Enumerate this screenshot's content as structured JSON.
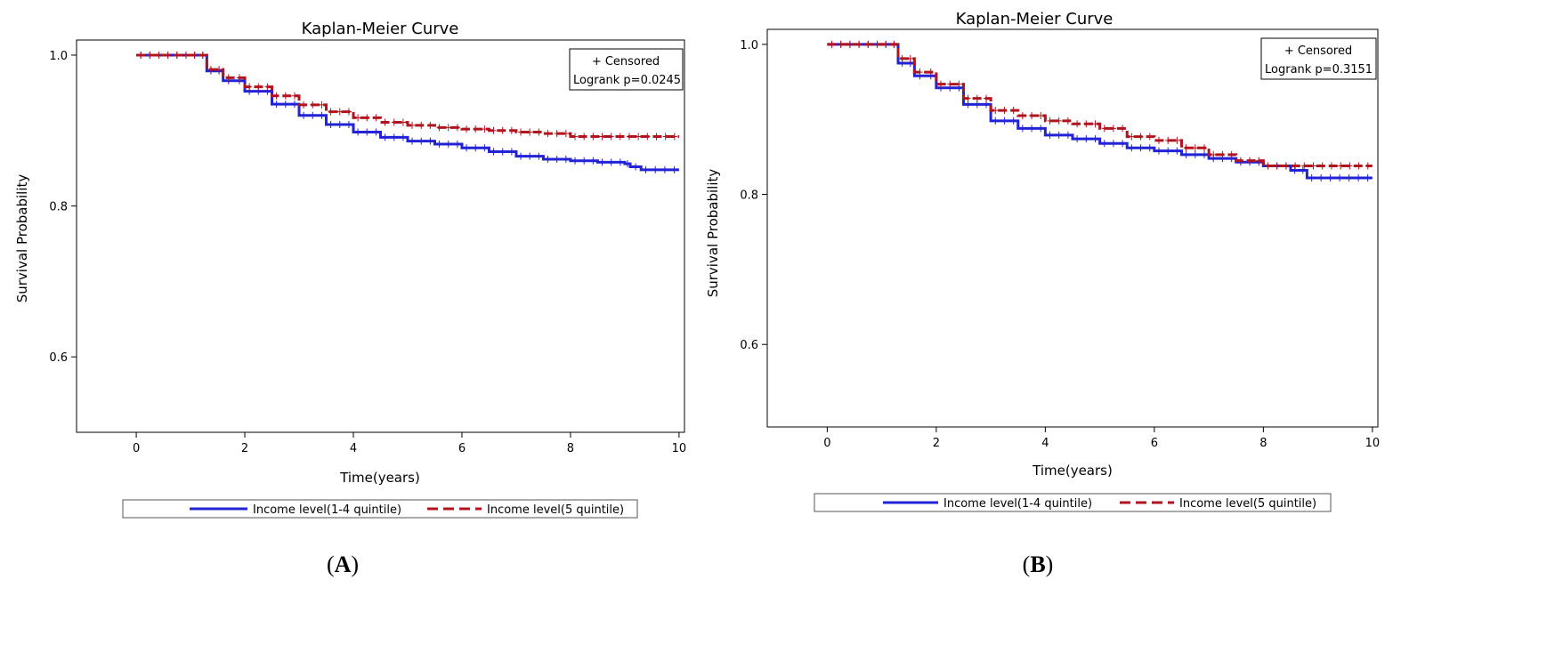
{
  "colors": {
    "series_low": "#2323d6",
    "series_high": "#b0141e",
    "frame": "#000000",
    "legend_frame": "#555555"
  },
  "chart_data": [
    {
      "type": "line",
      "panel_label": "A",
      "panel_label_open": "(",
      "panel_label_close": ")",
      "title": "Kaplan-Meier Curve",
      "xlabel": "Time(years)",
      "ylabel": "Survival Probability",
      "xlim": [
        -1.1,
        10.1
      ],
      "ylim": [
        0.5,
        1.02
      ],
      "xticks": [
        0,
        2,
        4,
        6,
        8,
        10
      ],
      "yticks": [
        0.6,
        0.8,
        1.0
      ],
      "ytick_labels": [
        "0.6",
        "0.8",
        "1.0"
      ],
      "annotation": {
        "censored_label": "+ Censored",
        "logrank_label": "Logrank p=0.0245"
      },
      "legend_position": "bottom",
      "series": [
        {
          "name": "Income level(1-4 quintile)",
          "style": "solid",
          "x": [
            0,
            1.0,
            1.3,
            1.6,
            2.0,
            2.5,
            3.0,
            3.5,
            4.0,
            4.5,
            5.0,
            5.5,
            6.0,
            6.5,
            7.0,
            7.5,
            8.0,
            8.5,
            9.0,
            9.1,
            9.3,
            10.0
          ],
          "y": [
            1.0,
            1.0,
            0.979,
            0.966,
            0.952,
            0.935,
            0.92,
            0.908,
            0.898,
            0.891,
            0.886,
            0.882,
            0.877,
            0.872,
            0.866,
            0.862,
            0.86,
            0.858,
            0.856,
            0.852,
            0.848,
            0.848
          ]
        },
        {
          "name": "Income level(5 quintile)",
          "style": "dashed",
          "x": [
            0,
            1.0,
            1.3,
            1.6,
            2.0,
            2.5,
            3.0,
            3.5,
            4.0,
            4.5,
            5.0,
            5.5,
            6.0,
            6.5,
            7.0,
            7.5,
            8.0,
            10.0
          ],
          "y": [
            1.0,
            1.0,
            0.981,
            0.97,
            0.958,
            0.946,
            0.934,
            0.925,
            0.917,
            0.911,
            0.907,
            0.904,
            0.902,
            0.9,
            0.898,
            0.896,
            0.892,
            0.892
          ]
        }
      ]
    },
    {
      "type": "line",
      "panel_label": "B",
      "panel_label_open": "(",
      "panel_label_close": ")",
      "title": "Kaplan-Meier Curve",
      "xlabel": "Time(years)",
      "ylabel": "Survival Probability",
      "xlim": [
        -1.1,
        10.1
      ],
      "ylim": [
        0.49,
        1.02
      ],
      "xticks": [
        0,
        2,
        4,
        6,
        8,
        10
      ],
      "yticks": [
        0.6,
        0.8,
        1.0
      ],
      "ytick_labels": [
        "0.6",
        "0.8",
        "1.0"
      ],
      "annotation": {
        "censored_label": "+ Censored",
        "logrank_label": "Logrank p=0.3151"
      },
      "legend_position": "bottom",
      "series": [
        {
          "name": "Income level(1-4 quintile)",
          "style": "solid",
          "x": [
            0,
            1.0,
            1.3,
            1.6,
            2.0,
            2.5,
            3.0,
            3.5,
            4.0,
            4.5,
            5.0,
            5.5,
            6.0,
            6.5,
            7.0,
            7.5,
            8.0,
            8.5,
            8.8,
            10.0
          ],
          "y": [
            1.0,
            1.0,
            0.975,
            0.958,
            0.942,
            0.92,
            0.898,
            0.888,
            0.879,
            0.874,
            0.868,
            0.862,
            0.858,
            0.853,
            0.848,
            0.843,
            0.838,
            0.832,
            0.822,
            0.822
          ]
        },
        {
          "name": "Income level(5 quintile)",
          "style": "dashed",
          "x": [
            0,
            1.0,
            1.3,
            1.6,
            2.0,
            2.5,
            3.0,
            3.5,
            4.0,
            4.5,
            5.0,
            5.5,
            6.0,
            6.5,
            7.0,
            7.5,
            8.0,
            10.0
          ],
          "y": [
            1.0,
            1.0,
            0.981,
            0.963,
            0.947,
            0.928,
            0.912,
            0.905,
            0.898,
            0.894,
            0.888,
            0.877,
            0.872,
            0.862,
            0.853,
            0.845,
            0.838,
            0.838
          ]
        }
      ]
    }
  ]
}
